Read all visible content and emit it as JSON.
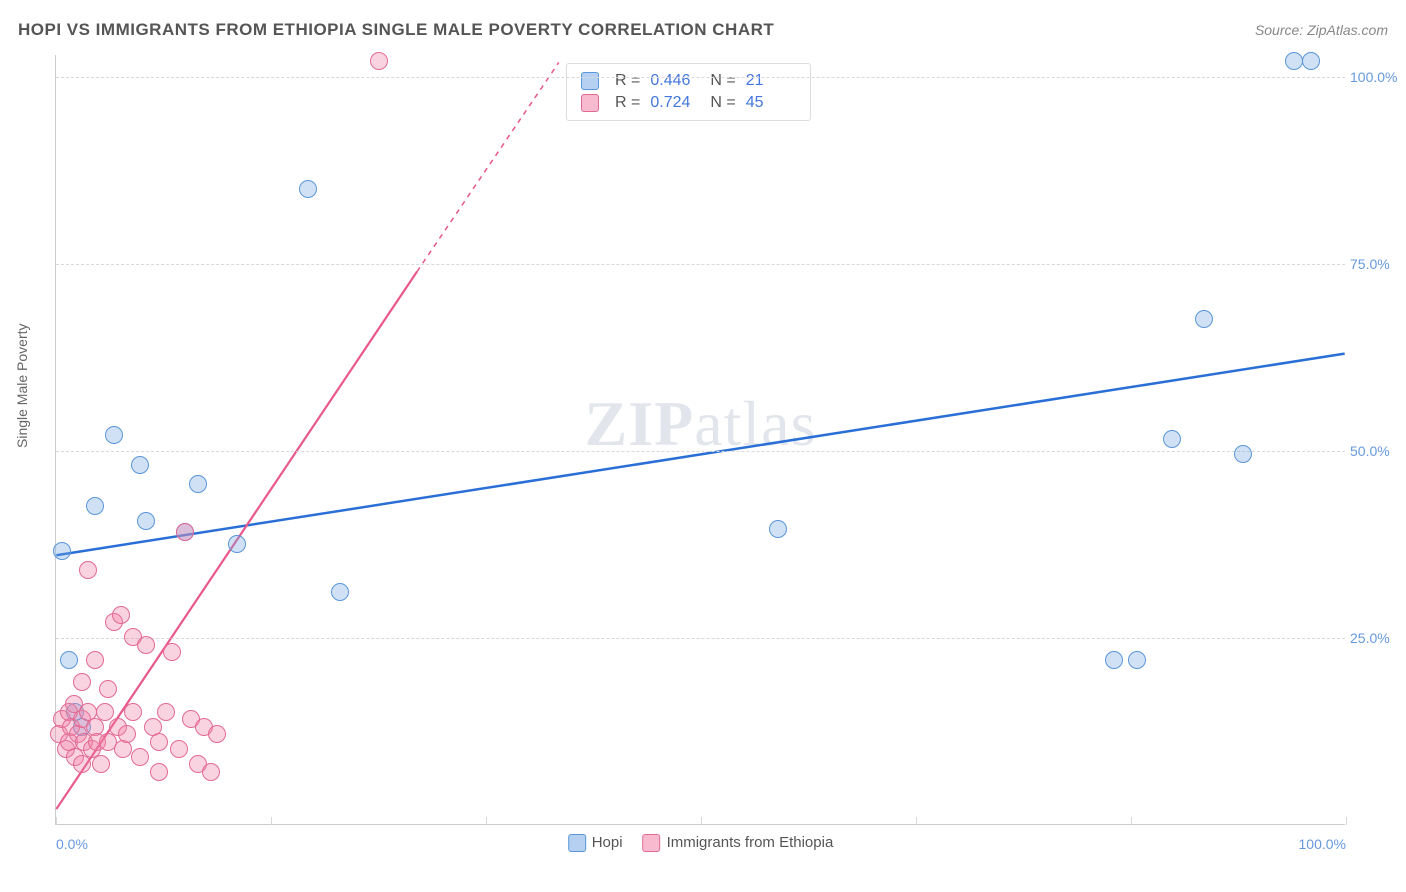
{
  "title": "HOPI VS IMMIGRANTS FROM ETHIOPIA SINGLE MALE POVERTY CORRELATION CHART",
  "source": "Source: ZipAtlas.com",
  "y_axis_title": "Single Male Poverty",
  "watermark_bold": "ZIP",
  "watermark_light": "atlas",
  "chart": {
    "type": "scatter",
    "xlim": [
      0,
      100
    ],
    "ylim": [
      0,
      103
    ],
    "y_ticks": [
      25,
      50,
      75,
      100
    ],
    "y_tick_labels": [
      "25.0%",
      "50.0%",
      "75.0%",
      "100.0%"
    ],
    "x_ticks": [
      0,
      16.67,
      33.33,
      50,
      66.67,
      83.33,
      100
    ],
    "x_tick_labels_shown": {
      "0": "0.0%",
      "100": "100.0%"
    },
    "grid_color": "#d8d8d8",
    "background_color": "#ffffff",
    "marker_radius": 9,
    "marker_border_width": 1.5,
    "series": [
      {
        "key": "hopi",
        "label": "Hopi",
        "color_fill": "rgba(120,170,230,0.35)",
        "color_stroke": "#5a96d8",
        "regression": {
          "x1": 0,
          "y1": 36,
          "x2": 100,
          "y2": 63,
          "stroke": "#2a6fd6",
          "width": 2.5,
          "dash": "none"
        },
        "R": "0.446",
        "N": "21",
        "points": [
          [
            0.5,
            36.5
          ],
          [
            1,
            22
          ],
          [
            1.5,
            15
          ],
          [
            2,
            13
          ],
          [
            3,
            42.5
          ],
          [
            4.5,
            52
          ],
          [
            6.5,
            48
          ],
          [
            7,
            40.5
          ],
          [
            10,
            39
          ],
          [
            11,
            45.5
          ],
          [
            19.5,
            85
          ],
          [
            14,
            37.5
          ],
          [
            22,
            31
          ],
          [
            56,
            39.5
          ],
          [
            82,
            22
          ],
          [
            83.8,
            22
          ],
          [
            86.5,
            51.5
          ],
          [
            89,
            67.5
          ],
          [
            92,
            49.5
          ],
          [
            96,
            102
          ],
          [
            97.3,
            102
          ]
        ]
      },
      {
        "key": "ethiopia",
        "label": "Immigrants from Ethiopia",
        "color_fill": "rgba(240,130,165,0.35)",
        "color_stroke": "#e26a94",
        "regression": {
          "x1": 0,
          "y1": 2,
          "x2": 28,
          "y2": 74,
          "dash_after_x": 28,
          "x2_dash": 39,
          "y2_dash": 102,
          "stroke": "#e9588b",
          "width": 2.2
        },
        "R": "0.724",
        "N": "45",
        "points": [
          [
            0.2,
            12
          ],
          [
            0.5,
            14
          ],
          [
            0.8,
            10
          ],
          [
            1,
            15
          ],
          [
            1,
            11
          ],
          [
            1.2,
            13
          ],
          [
            1.4,
            16
          ],
          [
            1.5,
            9
          ],
          [
            1.7,
            12
          ],
          [
            2,
            19
          ],
          [
            2,
            14
          ],
          [
            2,
            8
          ],
          [
            2.2,
            11
          ],
          [
            2.5,
            34
          ],
          [
            2.5,
            15
          ],
          [
            2.8,
            10
          ],
          [
            3,
            22
          ],
          [
            3,
            13
          ],
          [
            3.2,
            11
          ],
          [
            3.5,
            8
          ],
          [
            3.8,
            15
          ],
          [
            4,
            18
          ],
          [
            4,
            11
          ],
          [
            4.5,
            27
          ],
          [
            4.8,
            13
          ],
          [
            5,
            28
          ],
          [
            5.2,
            10
          ],
          [
            5.5,
            12
          ],
          [
            6,
            25
          ],
          [
            6,
            15
          ],
          [
            6.5,
            9
          ],
          [
            7,
            24
          ],
          [
            7.5,
            13
          ],
          [
            8,
            11
          ],
          [
            8,
            7
          ],
          [
            8.5,
            15
          ],
          [
            9,
            23
          ],
          [
            9.5,
            10
          ],
          [
            10,
            39
          ],
          [
            10.5,
            14
          ],
          [
            11,
            8
          ],
          [
            11.5,
            13
          ],
          [
            12,
            7
          ],
          [
            12.5,
            12
          ],
          [
            25,
            102
          ]
        ]
      }
    ]
  },
  "stats_box": {
    "rows": [
      {
        "swatch_fill": "rgba(120,170,230,0.55)",
        "swatch_stroke": "#5a96d8",
        "R": "0.446",
        "N": "21"
      },
      {
        "swatch_fill": "rgba(240,130,165,0.55)",
        "swatch_stroke": "#e26a94",
        "R": "0.724",
        "N": "45"
      }
    ]
  },
  "bottom_legend": [
    {
      "swatch_fill": "rgba(120,170,230,0.55)",
      "swatch_stroke": "#5a96d8",
      "label": "Hopi"
    },
    {
      "swatch_fill": "rgba(240,130,165,0.55)",
      "swatch_stroke": "#e26a94",
      "label": "Immigrants from Ethiopia"
    }
  ]
}
